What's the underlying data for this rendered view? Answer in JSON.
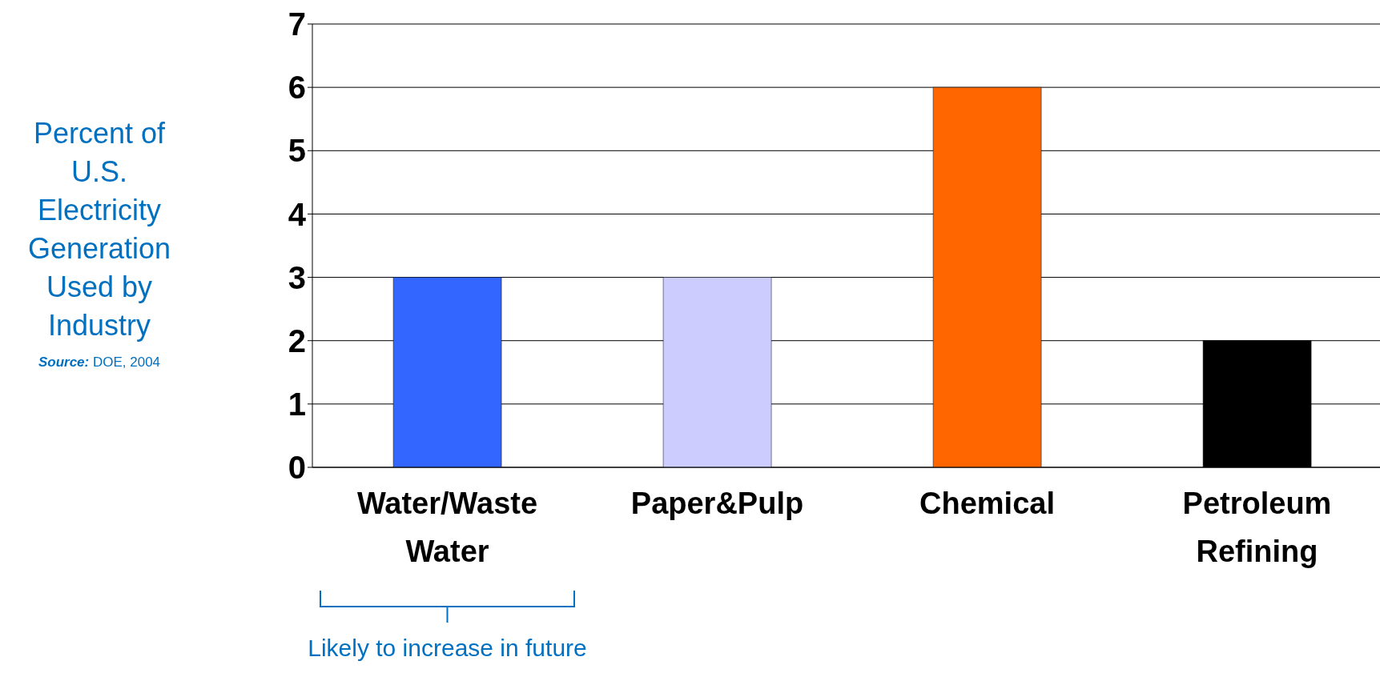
{
  "chart_data": {
    "type": "bar",
    "ylabel": "Percent of U.S. Electricity Generation Used by Industry",
    "categories": [
      "Water/Waste Water",
      "Paper&Pulp",
      "Chemical",
      "Petroleum Refining"
    ],
    "values": [
      3,
      3,
      6,
      2
    ],
    "colors": [
      "#3366ff",
      "#ccccff",
      "#ff6600",
      "#000000"
    ],
    "ylim": [
      0,
      7
    ],
    "yticks": [
      0,
      1,
      2,
      3,
      4,
      5,
      6,
      7
    ],
    "grid": "y",
    "annotations": [
      "Source: DOE, 2004",
      {
        "text": "Likely to increase in future",
        "x": "Water/Waste Water"
      }
    ]
  }
}
